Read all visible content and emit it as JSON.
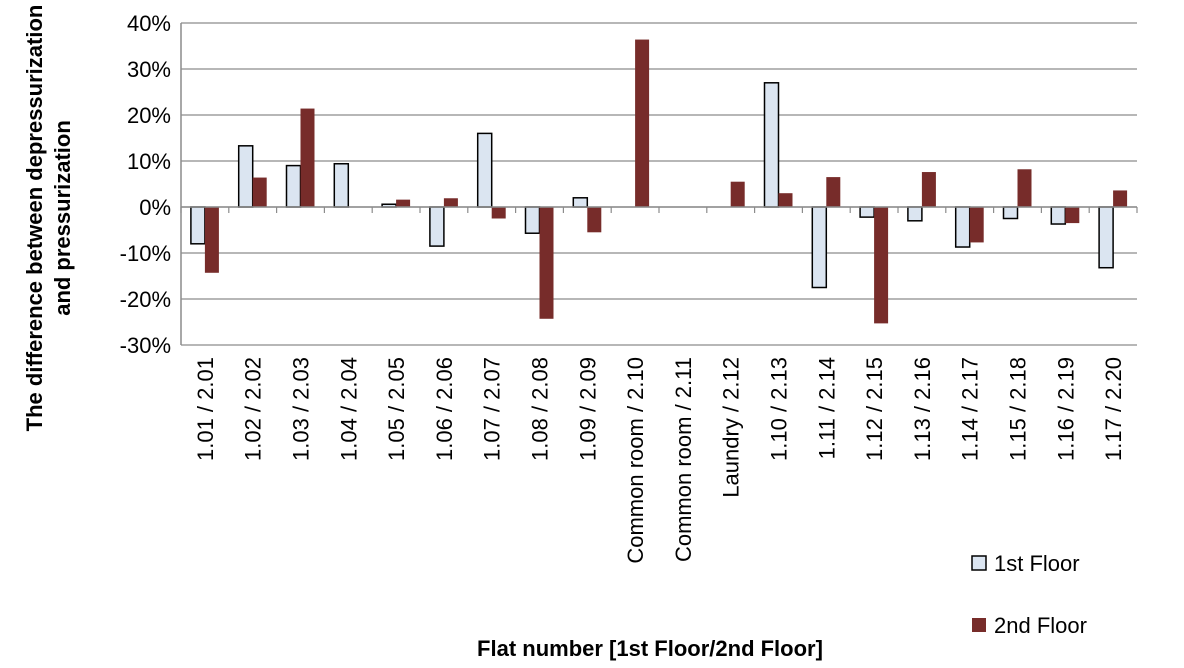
{
  "chart_data": {
    "type": "bar",
    "title": "",
    "xlabel": "Flat number [1st Floor/2nd Floor]",
    "ylabel_lines": [
      "The difference between depressurization",
      "and pressurization"
    ],
    "ylim": [
      -0.3,
      0.4
    ],
    "yticks": [
      -0.3,
      -0.2,
      -0.1,
      0,
      0.1,
      0.2,
      0.3,
      0.4
    ],
    "ytick_labels": [
      "-30%",
      "-20%",
      "-10%",
      "0%",
      "10%",
      "20%",
      "30%",
      "40%"
    ],
    "grid": true,
    "legend_position": "bottom-right",
    "categories": [
      "1.01 / 2.01",
      "1.02 / 2.02",
      "1.03 / 2.03",
      "1.04 / 2.04",
      "1.05 / 2.05",
      "1.06 / 2.06",
      "1.07 / 2.07",
      "1.08 / 2.08",
      "1.09 / 2.09",
      "Common room / 2.10",
      "Common room / 2.11",
      "Laundry / 2.12",
      "1.10 / 2.13",
      "1.11 / 2.14",
      "1.12 / 2.15",
      "1.13 / 2.16",
      "1.14 / 2.17",
      "1.15 / 2.18",
      "1.16 / 2.19",
      "1.17 / 2.20"
    ],
    "series": [
      {
        "name": "1st Floor",
        "color": "#dbe5f1",
        "stroke": "#000000",
        "values": [
          -0.08,
          0.133,
          0.09,
          0.094,
          0.006,
          -0.085,
          0.16,
          -0.057,
          0.02,
          0,
          0,
          0,
          0.27,
          -0.175,
          -0.022,
          -0.03,
          -0.087,
          -0.025,
          -0.037,
          -0.132
        ]
      },
      {
        "name": "2nd Floor",
        "color": "#772c2a",
        "stroke": "none",
        "values": [
          -0.143,
          0.064,
          0.214,
          0,
          0.016,
          0.019,
          -0.025,
          -0.243,
          -0.055,
          0.364,
          0,
          0.055,
          0.03,
          0.065,
          -0.253,
          0.076,
          -0.077,
          0.082,
          -0.035,
          0.036
        ]
      }
    ]
  }
}
